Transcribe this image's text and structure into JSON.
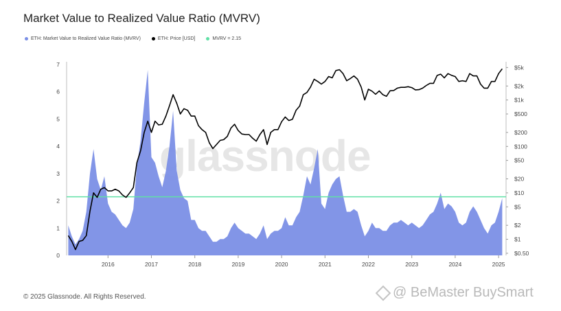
{
  "header": {
    "title": "Market Value to Realized Value Ratio (MVRV)"
  },
  "legend": {
    "items": [
      {
        "label": "ETH: Market Value to Realized Value Ratio (MVRV)",
        "color": "#7b8fe6"
      },
      {
        "label": "ETH: Price [USD]",
        "color": "#000000"
      },
      {
        "label": "MVRV = 2.15",
        "color": "#5fe0a6"
      }
    ]
  },
  "background_watermark": "glassnode",
  "footer": {
    "copyright": "© 2025 Glassnode. All Rights Reserved."
  },
  "watermark": {
    "text": "@ BeMaster BuySmart"
  },
  "chart_data": {
    "type": "area",
    "x_ticks": [
      "2016",
      "2017",
      "2018",
      "2019",
      "2020",
      "2021",
      "2022",
      "2023",
      "2024",
      "2025"
    ],
    "left_axis": {
      "ticks": [
        "0",
        "1",
        "2",
        "3",
        "4",
        "5",
        "6",
        "7"
      ],
      "ylim": [
        0,
        7
      ]
    },
    "right_axis": {
      "scale": "log",
      "ticks": [
        "$0.50",
        "$1",
        "$2",
        "$5",
        "$10",
        "$20",
        "$50",
        "$100",
        "$200",
        "$500",
        "$1k",
        "$2k",
        "$5k"
      ]
    },
    "reference_line": {
      "label": "MVRV = 2.15",
      "value": 2.15,
      "color": "#5fe0a6"
    },
    "series": [
      {
        "name": "ETH: Market Value to Realized Value Ratio (MVRV)",
        "axis": "left",
        "color": "#7b8fe6",
        "points": [
          [
            "2015-08",
            1.1
          ],
          [
            "2015-09",
            0.7
          ],
          [
            "2015-10",
            0.4
          ],
          [
            "2015-11",
            0.6
          ],
          [
            "2015-12",
            0.9
          ],
          [
            "2016-01",
            1.6
          ],
          [
            "2016-02",
            3.0
          ],
          [
            "2016-03",
            3.9
          ],
          [
            "2016-04",
            2.8
          ],
          [
            "2016-05",
            2.4
          ],
          [
            "2016-06",
            2.9
          ],
          [
            "2016-07",
            1.9
          ],
          [
            "2016-08",
            1.6
          ],
          [
            "2016-09",
            1.5
          ],
          [
            "2016-10",
            1.3
          ],
          [
            "2016-11",
            1.1
          ],
          [
            "2016-12",
            1.0
          ],
          [
            "2017-01",
            1.2
          ],
          [
            "2017-02",
            1.7
          ],
          [
            "2017-03",
            3.3
          ],
          [
            "2017-04",
            4.2
          ],
          [
            "2017-05",
            5.6
          ],
          [
            "2017-06",
            6.8
          ],
          [
            "2017-07",
            3.6
          ],
          [
            "2017-08",
            3.4
          ],
          [
            "2017-09",
            2.9
          ],
          [
            "2017-10",
            2.5
          ],
          [
            "2017-11",
            3.1
          ],
          [
            "2017-12",
            4.0
          ],
          [
            "2018-01",
            5.3
          ],
          [
            "2018-02",
            3.1
          ],
          [
            "2018-03",
            2.4
          ],
          [
            "2018-04",
            2.1
          ],
          [
            "2018-05",
            2.0
          ],
          [
            "2018-06",
            1.3
          ],
          [
            "2018-07",
            1.3
          ],
          [
            "2018-08",
            1.0
          ],
          [
            "2018-09",
            0.9
          ],
          [
            "2018-10",
            0.9
          ],
          [
            "2018-11",
            0.7
          ],
          [
            "2018-12",
            0.5
          ],
          [
            "2019-01",
            0.5
          ],
          [
            "2019-02",
            0.6
          ],
          [
            "2019-03",
            0.6
          ],
          [
            "2019-04",
            0.7
          ],
          [
            "2019-05",
            1.0
          ],
          [
            "2019-06",
            1.2
          ],
          [
            "2019-07",
            1.0
          ],
          [
            "2019-08",
            0.9
          ],
          [
            "2019-09",
            0.8
          ],
          [
            "2019-10",
            0.8
          ],
          [
            "2019-11",
            0.7
          ],
          [
            "2019-12",
            0.6
          ],
          [
            "2020-01",
            0.8
          ],
          [
            "2020-02",
            1.1
          ],
          [
            "2020-03",
            0.6
          ],
          [
            "2020-04",
            0.8
          ],
          [
            "2020-05",
            0.9
          ],
          [
            "2020-06",
            0.9
          ],
          [
            "2020-07",
            1.0
          ],
          [
            "2020-08",
            1.4
          ],
          [
            "2020-09",
            1.1
          ],
          [
            "2020-10",
            1.1
          ],
          [
            "2020-11",
            1.4
          ],
          [
            "2020-12",
            1.6
          ],
          [
            "2021-01",
            2.2
          ],
          [
            "2021-02",
            2.9
          ],
          [
            "2021-03",
            2.6
          ],
          [
            "2021-04",
            3.2
          ],
          [
            "2021-05",
            3.9
          ],
          [
            "2021-06",
            1.9
          ],
          [
            "2021-07",
            1.7
          ],
          [
            "2021-08",
            2.3
          ],
          [
            "2021-09",
            2.6
          ],
          [
            "2021-10",
            2.8
          ],
          [
            "2021-11",
            2.9
          ],
          [
            "2021-12",
            2.2
          ],
          [
            "2022-01",
            1.6
          ],
          [
            "2022-02",
            1.6
          ],
          [
            "2022-03",
            1.7
          ],
          [
            "2022-04",
            1.6
          ],
          [
            "2022-05",
            1.1
          ],
          [
            "2022-06",
            0.7
          ],
          [
            "2022-07",
            0.9
          ],
          [
            "2022-08",
            1.2
          ],
          [
            "2022-09",
            1.0
          ],
          [
            "2022-10",
            1.0
          ],
          [
            "2022-11",
            0.9
          ],
          [
            "2022-12",
            0.9
          ],
          [
            "2023-01",
            1.1
          ],
          [
            "2023-02",
            1.2
          ],
          [
            "2023-03",
            1.2
          ],
          [
            "2023-04",
            1.3
          ],
          [
            "2023-05",
            1.2
          ],
          [
            "2023-06",
            1.1
          ],
          [
            "2023-07",
            1.2
          ],
          [
            "2023-08",
            1.1
          ],
          [
            "2023-09",
            1.0
          ],
          [
            "2023-10",
            1.1
          ],
          [
            "2023-11",
            1.3
          ],
          [
            "2023-12",
            1.5
          ],
          [
            "2024-01",
            1.6
          ],
          [
            "2024-02",
            1.9
          ],
          [
            "2024-03",
            2.3
          ],
          [
            "2024-04",
            1.7
          ],
          [
            "2024-05",
            1.9
          ],
          [
            "2024-06",
            1.8
          ],
          [
            "2024-07",
            1.6
          ],
          [
            "2024-08",
            1.2
          ],
          [
            "2024-09",
            1.1
          ],
          [
            "2024-10",
            1.2
          ],
          [
            "2024-11",
            1.6
          ],
          [
            "2024-12",
            1.8
          ],
          [
            "2025-01",
            1.6
          ],
          [
            "2025-02",
            1.3
          ],
          [
            "2025-03",
            1.0
          ],
          [
            "2025-04",
            0.8
          ],
          [
            "2025-05",
            1.1
          ],
          [
            "2025-06",
            1.2
          ],
          [
            "2025-07",
            1.6
          ],
          [
            "2025-08",
            2.1
          ]
        ]
      },
      {
        "name": "ETH: Price [USD]",
        "axis": "right",
        "color": "#000000",
        "points": [
          [
            "2015-08",
            1.2
          ],
          [
            "2015-09",
            0.9
          ],
          [
            "2015-10",
            0.6
          ],
          [
            "2015-11",
            0.9
          ],
          [
            "2015-12",
            0.95
          ],
          [
            "2016-01",
            1.2
          ],
          [
            "2016-02",
            4
          ],
          [
            "2016-03",
            10
          ],
          [
            "2016-04",
            8
          ],
          [
            "2016-05",
            12
          ],
          [
            "2016-06",
            13
          ],
          [
            "2016-07",
            11
          ],
          [
            "2016-08",
            11
          ],
          [
            "2016-09",
            12
          ],
          [
            "2016-10",
            11
          ],
          [
            "2016-11",
            9
          ],
          [
            "2016-12",
            8
          ],
          [
            "2017-01",
            10
          ],
          [
            "2017-02",
            13
          ],
          [
            "2017-03",
            45
          ],
          [
            "2017-04",
            80
          ],
          [
            "2017-05",
            200
          ],
          [
            "2017-06",
            350
          ],
          [
            "2017-07",
            200
          ],
          [
            "2017-08",
            350
          ],
          [
            "2017-09",
            290
          ],
          [
            "2017-10",
            300
          ],
          [
            "2017-11",
            450
          ],
          [
            "2017-12",
            750
          ],
          [
            "2018-01",
            1300
          ],
          [
            "2018-02",
            850
          ],
          [
            "2018-03",
            500
          ],
          [
            "2018-04",
            650
          ],
          [
            "2018-05",
            600
          ],
          [
            "2018-06",
            450
          ],
          [
            "2018-07",
            450
          ],
          [
            "2018-08",
            280
          ],
          [
            "2018-09",
            230
          ],
          [
            "2018-10",
            200
          ],
          [
            "2018-11",
            120
          ],
          [
            "2018-12",
            90
          ],
          [
            "2019-01",
            110
          ],
          [
            "2019-02",
            135
          ],
          [
            "2019-03",
            140
          ],
          [
            "2019-04",
            165
          ],
          [
            "2019-05",
            250
          ],
          [
            "2019-06",
            300
          ],
          [
            "2019-07",
            220
          ],
          [
            "2019-08",
            185
          ],
          [
            "2019-09",
            180
          ],
          [
            "2019-10",
            180
          ],
          [
            "2019-11",
            150
          ],
          [
            "2019-12",
            130
          ],
          [
            "2020-01",
            180
          ],
          [
            "2020-02",
            230
          ],
          [
            "2020-03",
            110
          ],
          [
            "2020-04",
            200
          ],
          [
            "2020-05",
            230
          ],
          [
            "2020-06",
            230
          ],
          [
            "2020-07",
            340
          ],
          [
            "2020-08",
            430
          ],
          [
            "2020-09",
            360
          ],
          [
            "2020-10",
            385
          ],
          [
            "2020-11",
            600
          ],
          [
            "2020-12",
            740
          ],
          [
            "2021-01",
            1300
          ],
          [
            "2021-02",
            1450
          ],
          [
            "2021-03",
            1900
          ],
          [
            "2021-04",
            2800
          ],
          [
            "2021-05",
            2500
          ],
          [
            "2021-06",
            2200
          ],
          [
            "2021-07",
            2500
          ],
          [
            "2021-08",
            3200
          ],
          [
            "2021-09",
            3000
          ],
          [
            "2021-10",
            4300
          ],
          [
            "2021-11",
            4500
          ],
          [
            "2021-12",
            3700
          ],
          [
            "2022-01",
            2600
          ],
          [
            "2022-02",
            2900
          ],
          [
            "2022-03",
            3300
          ],
          [
            "2022-04",
            2800
          ],
          [
            "2022-05",
            1900
          ],
          [
            "2022-06",
            1000
          ],
          [
            "2022-07",
            1700
          ],
          [
            "2022-08",
            1550
          ],
          [
            "2022-09",
            1330
          ],
          [
            "2022-10",
            1570
          ],
          [
            "2022-11",
            1300
          ],
          [
            "2022-12",
            1200
          ],
          [
            "2023-01",
            1580
          ],
          [
            "2023-02",
            1600
          ],
          [
            "2023-03",
            1800
          ],
          [
            "2023-04",
            1870
          ],
          [
            "2023-05",
            1870
          ],
          [
            "2023-06",
            1930
          ],
          [
            "2023-07",
            1850
          ],
          [
            "2023-08",
            1650
          ],
          [
            "2023-09",
            1670
          ],
          [
            "2023-10",
            1800
          ],
          [
            "2023-11",
            2050
          ],
          [
            "2023-12",
            2280
          ],
          [
            "2024-01",
            2280
          ],
          [
            "2024-02",
            3380
          ],
          [
            "2024-03",
            3600
          ],
          [
            "2024-04",
            3000
          ],
          [
            "2024-05",
            3700
          ],
          [
            "2024-06",
            3400
          ],
          [
            "2024-07",
            3200
          ],
          [
            "2024-08",
            2500
          ],
          [
            "2024-09",
            2600
          ],
          [
            "2024-10",
            2500
          ],
          [
            "2024-11",
            3700
          ],
          [
            "2024-12",
            3300
          ],
          [
            "2025-01",
            3300
          ],
          [
            "2025-02",
            2200
          ],
          [
            "2025-03",
            1800
          ],
          [
            "2025-04",
            1800
          ],
          [
            "2025-05",
            2500
          ],
          [
            "2025-06",
            2500
          ],
          [
            "2025-07",
            3700
          ],
          [
            "2025-08",
            4700
          ]
        ]
      }
    ]
  }
}
